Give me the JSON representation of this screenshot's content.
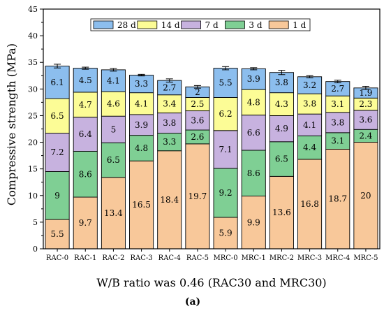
{
  "chart_data": {
    "type": "bar",
    "stacked": true,
    "categories": [
      "RAC-0",
      "RAC-1",
      "RAC-2",
      "RAC-3",
      "RAC-4",
      "RAC-5",
      "MRC-0",
      "MRC-1",
      "MRC-2",
      "MRC-3",
      "MRC-4",
      "MRC-5"
    ],
    "series": [
      {
        "name": "1 d",
        "color": "#F8C89A",
        "values": [
          5.5,
          9.7,
          13.4,
          16.5,
          18.4,
          19.7,
          5.9,
          9.9,
          13.6,
          16.8,
          18.7,
          20
        ]
      },
      {
        "name": "3 d",
        "color": "#7FCF94",
        "values": [
          9,
          8.6,
          6.5,
          4.8,
          3.3,
          2.6,
          9.2,
          8.6,
          6.5,
          4.4,
          3.1,
          2.4
        ]
      },
      {
        "name": "7 d",
        "color": "#C7B2DF",
        "values": [
          7.2,
          6.4,
          5,
          3.9,
          3.8,
          3.6,
          7.1,
          6.6,
          4.9,
          4.1,
          3.8,
          3.6
        ]
      },
      {
        "name": "14 d",
        "color": "#FCFC96",
        "values": [
          6.5,
          4.7,
          4.6,
          4.1,
          3.4,
          2.5,
          6.2,
          4.8,
          4.3,
          3.8,
          3.1,
          2.3
        ]
      },
      {
        "name": "28 d",
        "color": "#8CBEEE",
        "values": [
          6.1,
          4.5,
          4.1,
          3.3,
          2.7,
          2,
          5.5,
          3.9,
          3.8,
          3.2,
          2.7,
          1.9
        ]
      }
    ],
    "error_bars": [
      0.7,
      0.4,
      0.5,
      0.3,
      0.6,
      0.5,
      0.6,
      0.4,
      0.8,
      0.4,
      0.5,
      0.6
    ],
    "ylabel": "Compressive strength (MPa)",
    "xlabel": "W/B ratio was 0.46 (RAC30 and MRC30)",
    "ylim": [
      0,
      45
    ],
    "yticks": [
      0,
      5,
      10,
      15,
      20,
      25,
      30,
      35,
      40,
      45
    ],
    "legend_order": [
      "28 d",
      "14 d",
      "7 d",
      "3 d",
      "1 d"
    ],
    "legend_placement": "top-center",
    "grid": false,
    "caption": "(a)"
  }
}
